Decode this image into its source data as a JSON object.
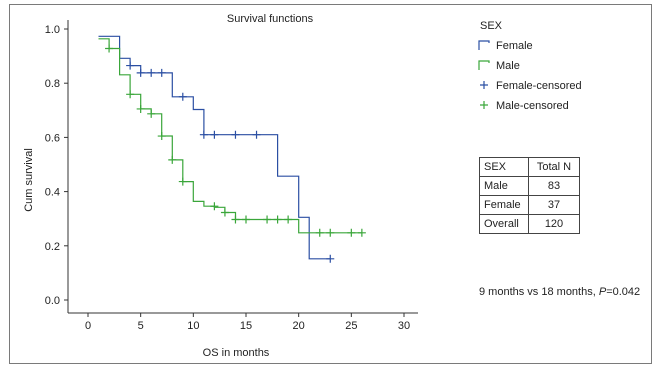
{
  "chart_data": {
    "type": "line",
    "subtype": "kaplan-meier survival",
    "title": "Survival functions",
    "xlabel": "OS in months",
    "ylabel": "Cum survival",
    "xlim": [
      0,
      30
    ],
    "ylim": [
      0,
      1.0
    ],
    "xticks": [
      "0",
      "5",
      "10",
      "15",
      "20",
      "25",
      "30"
    ],
    "yticks": [
      "0.0",
      "0.2",
      "0.4",
      "0.6",
      "0.8",
      "1.0"
    ],
    "grid": false,
    "legend_title": "SEX",
    "legend_position": "right",
    "series": [
      {
        "name": "Female",
        "color": "#2b4fa3",
        "steps": [
          [
            1,
            0.973
          ],
          [
            3,
            0.973
          ],
          [
            3,
            0.892
          ],
          [
            4,
            0.892
          ],
          [
            4,
            0.865
          ],
          [
            5,
            0.865
          ],
          [
            5,
            0.838
          ],
          [
            8,
            0.838
          ],
          [
            8,
            0.75
          ],
          [
            10,
            0.75
          ],
          [
            10,
            0.703
          ],
          [
            11,
            0.703
          ],
          [
            11,
            0.61
          ],
          [
            18,
            0.61
          ],
          [
            18,
            0.457
          ],
          [
            20,
            0.457
          ],
          [
            20,
            0.305
          ],
          [
            21,
            0.305
          ],
          [
            21,
            0.152
          ],
          [
            23,
            0.152
          ]
        ],
        "censored": [
          [
            4,
            0.865
          ],
          [
            5,
            0.838
          ],
          [
            6,
            0.838
          ],
          [
            7,
            0.838
          ],
          [
            9,
            0.75
          ],
          [
            11,
            0.61
          ],
          [
            12,
            0.61
          ],
          [
            14,
            0.61
          ],
          [
            16,
            0.61
          ],
          [
            23,
            0.152
          ]
        ]
      },
      {
        "name": "Male",
        "color": "#3aa63a",
        "steps": [
          [
            1,
            0.964
          ],
          [
            2,
            0.964
          ],
          [
            2,
            0.928
          ],
          [
            3,
            0.928
          ],
          [
            3,
            0.831
          ],
          [
            4,
            0.831
          ],
          [
            4,
            0.759
          ],
          [
            5,
            0.759
          ],
          [
            5,
            0.705
          ],
          [
            6,
            0.705
          ],
          [
            6,
            0.687
          ],
          [
            7,
            0.687
          ],
          [
            7,
            0.605
          ],
          [
            8,
            0.605
          ],
          [
            8,
            0.517
          ],
          [
            9,
            0.517
          ],
          [
            9,
            0.437
          ],
          [
            10,
            0.437
          ],
          [
            10,
            0.364
          ],
          [
            11,
            0.364
          ],
          [
            11,
            0.346
          ],
          [
            12,
            0.346
          ],
          [
            12,
            0.342
          ],
          [
            13,
            0.342
          ],
          [
            13,
            0.323
          ],
          [
            14,
            0.323
          ],
          [
            14,
            0.297
          ],
          [
            20,
            0.297
          ],
          [
            20,
            0.248
          ],
          [
            26,
            0.248
          ]
        ],
        "censored": [
          [
            2,
            0.928
          ],
          [
            4,
            0.759
          ],
          [
            5,
            0.705
          ],
          [
            6,
            0.687
          ],
          [
            7,
            0.605
          ],
          [
            8,
            0.517
          ],
          [
            9,
            0.437
          ],
          [
            12,
            0.346
          ],
          [
            13,
            0.323
          ],
          [
            14,
            0.297
          ],
          [
            15,
            0.297
          ],
          [
            17,
            0.297
          ],
          [
            18,
            0.297
          ],
          [
            19,
            0.297
          ],
          [
            22,
            0.248
          ],
          [
            23,
            0.248
          ],
          [
            25,
            0.248
          ],
          [
            26,
            0.248
          ]
        ]
      }
    ],
    "legend": [
      {
        "label": "Female",
        "kind": "step",
        "color": "#2b4fa3"
      },
      {
        "label": "Male",
        "kind": "step",
        "color": "#3aa63a"
      },
      {
        "label": "Female-censored",
        "kind": "cross",
        "color": "#2b4fa3"
      },
      {
        "label": "Male-censored",
        "kind": "cross",
        "color": "#3aa63a"
      }
    ]
  },
  "n_table": {
    "headers": [
      "SEX",
      "Total N"
    ],
    "rows": [
      {
        "label": "Male",
        "n": "83"
      },
      {
        "label": "Female",
        "n": "37"
      },
      {
        "label": "Overall",
        "n": "120"
      }
    ]
  },
  "note": {
    "prefix": "9 months vs 18 months, ",
    "p_symbol": "P",
    "p_value": "=0.042"
  }
}
